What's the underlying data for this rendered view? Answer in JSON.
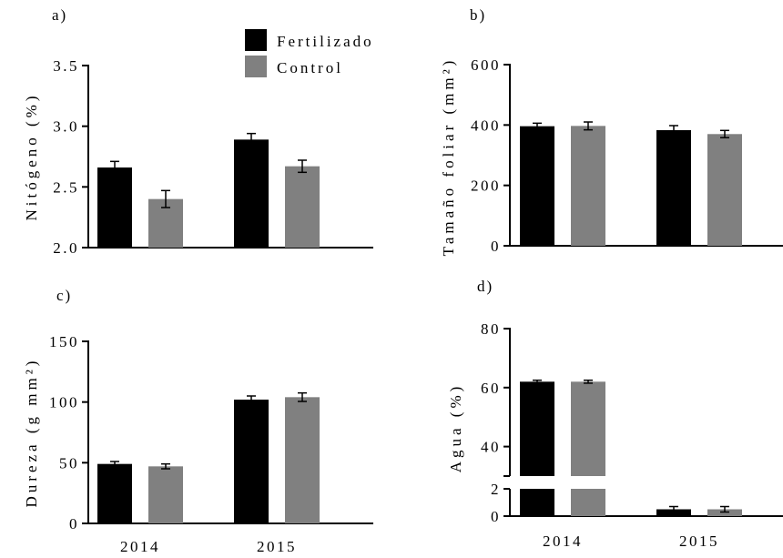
{
  "legend": {
    "fertilizado": "Fertilizado",
    "control": "Control"
  },
  "colors": {
    "fertilizado": "#000000",
    "control": "#808080"
  },
  "chart_data": [
    {
      "id": "a",
      "type": "bar",
      "panel_label": "a)",
      "ylabel": "Nitógeno (%)",
      "ylim": [
        2.0,
        3.5
      ],
      "yticks": [
        "2.0",
        "2.5",
        "3.0",
        "3.5"
      ],
      "ytick_values": [
        2.0,
        2.5,
        3.0,
        3.5
      ],
      "categories": [
        "2014",
        "2015"
      ],
      "series": [
        {
          "name": "Fertilizado",
          "values": [
            2.66,
            2.89
          ],
          "errors": [
            0.05,
            0.05
          ]
        },
        {
          "name": "Control",
          "values": [
            2.4,
            2.67
          ],
          "errors": [
            0.07,
            0.05
          ]
        }
      ]
    },
    {
      "id": "b",
      "type": "bar",
      "panel_label": "b)",
      "ylabel": "Tamaño foliar (mm²)",
      "ylim": [
        0,
        600
      ],
      "yticks": [
        "0",
        "200",
        "400",
        "600"
      ],
      "ytick_values": [
        0,
        200,
        400,
        600
      ],
      "categories": [
        "2014",
        "2015"
      ],
      "series": [
        {
          "name": "Fertilizado",
          "values": [
            396,
            383
          ],
          "errors": [
            10,
            15
          ]
        },
        {
          "name": "Control",
          "values": [
            397,
            370
          ],
          "errors": [
            13,
            12
          ]
        }
      ]
    },
    {
      "id": "c",
      "type": "bar",
      "panel_label": "c)",
      "ylabel": "Dureza (g mm²)",
      "ylim": [
        0,
        150
      ],
      "yticks": [
        "0",
        "50",
        "100",
        "150"
      ],
      "ytick_values": [
        0,
        50,
        100,
        150
      ],
      "categories": [
        "2014",
        "2015"
      ],
      "series": [
        {
          "name": "Fertilizado",
          "values": [
            49,
            102
          ],
          "errors": [
            2,
            3
          ]
        },
        {
          "name": "Control",
          "values": [
            47,
            104
          ],
          "errors": [
            2,
            3.5
          ]
        }
      ]
    },
    {
      "id": "d",
      "type": "bar",
      "panel_label": "d)",
      "ylabel": "Agua (%)",
      "broken_axis": true,
      "ylim_lower": [
        0,
        2
      ],
      "ylim_upper": [
        30,
        80
      ],
      "yticks": [
        "0",
        "2",
        "40",
        "60",
        "80"
      ],
      "ytick_values": [
        0,
        2,
        40,
        60,
        80
      ],
      "categories": [
        "2014",
        "2015"
      ],
      "series": [
        {
          "name": "Fertilizado",
          "values": [
            62,
            0.5
          ],
          "errors": [
            0.5,
            0.2
          ]
        },
        {
          "name": "Control",
          "values": [
            62,
            0.5
          ],
          "errors": [
            0.5,
            0.2
          ]
        }
      ]
    }
  ]
}
